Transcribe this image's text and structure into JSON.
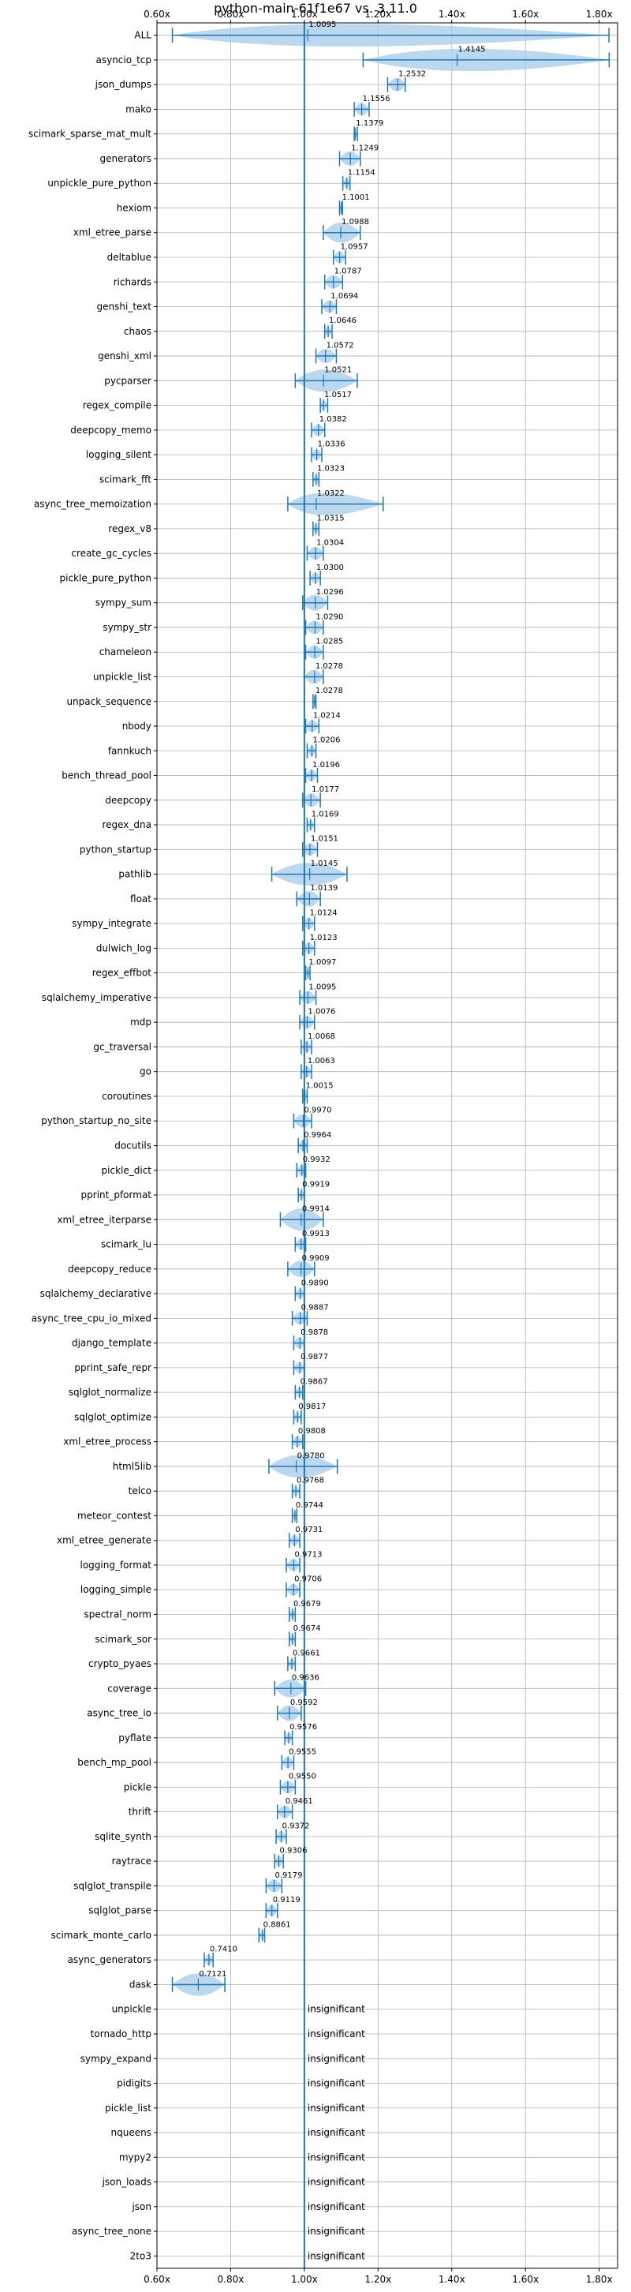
{
  "chart_data": {
    "type": "violin",
    "title": "python-main-61f1e67 vs. 3.11.0",
    "xlim": [
      0.6,
      1.85
    ],
    "x_ticks": [
      "0.60x",
      "0.80x",
      "1.00x",
      "1.20x",
      "1.40x",
      "1.60x",
      "1.80x"
    ],
    "x_tick_values": [
      0.6,
      0.8,
      1.0,
      1.2,
      1.4,
      1.6,
      1.8
    ],
    "reference_line": 1.0,
    "grid": true,
    "colors": {
      "violin": "#a6cbe8",
      "marker": "#1f77b4",
      "grid": "#b0b0b0",
      "refline": "#1f77b4"
    },
    "insignificant_label": "insignificant",
    "benchmarks": [
      {
        "name": "ALL",
        "value": 1.0095,
        "min": 0.6418,
        "max": 1.8266,
        "label": "1.0095"
      },
      {
        "name": "asyncio_tcp",
        "value": 1.4145,
        "min": 1.1594,
        "max": 1.8271,
        "label": "1.4145"
      },
      {
        "name": "json_dumps",
        "value": 1.2532,
        "min": 1.2259,
        "max": 1.2738,
        "label": "1.2532"
      },
      {
        "name": "mako",
        "value": 1.1556,
        "min": 1.1353,
        "max": 1.1757,
        "label": "1.1556"
      },
      {
        "name": "scimark_sparse_mat_mult",
        "value": 1.1379,
        "min": 1.1353,
        "max": 1.1438,
        "label": "1.1379"
      },
      {
        "name": "generators",
        "value": 1.1249,
        "min": 1.0955,
        "max": 1.1517,
        "label": "1.1249"
      },
      {
        "name": "unpickle_pure_python",
        "value": 1.1154,
        "min": 1.1043,
        "max": 1.1237,
        "label": "1.1154"
      },
      {
        "name": "hexiom",
        "value": 1.1001,
        "min": 1.0955,
        "max": 1.1036,
        "label": "1.1001"
      },
      {
        "name": "xml_etree_parse",
        "value": 1.0988,
        "min": 1.0513,
        "max": 1.1517,
        "label": "1.0988"
      },
      {
        "name": "deltablue",
        "value": 1.0957,
        "min": 1.0788,
        "max": 1.1117,
        "label": "1.0957"
      },
      {
        "name": "richards",
        "value": 1.0787,
        "min": 1.0553,
        "max": 1.1036,
        "label": "1.0787"
      },
      {
        "name": "genshi_text",
        "value": 1.0694,
        "min": 1.0474,
        "max": 1.0868,
        "label": "1.0694"
      },
      {
        "name": "chaos",
        "value": 1.0646,
        "min": 1.0553,
        "max": 1.0752,
        "label": "1.0646"
      },
      {
        "name": "genshi_xml",
        "value": 1.0572,
        "min": 1.0314,
        "max": 1.0868,
        "label": "1.0572"
      },
      {
        "name": "pycparser",
        "value": 1.0521,
        "min": 0.9753,
        "max": 1.1437,
        "label": "1.0521"
      },
      {
        "name": "regex_compile",
        "value": 1.0517,
        "min": 1.0434,
        "max": 1.0633,
        "label": "1.0517"
      },
      {
        "name": "deepcopy_memo",
        "value": 1.0382,
        "min": 1.0195,
        "max": 1.0553,
        "label": "1.0382"
      },
      {
        "name": "logging_silent",
        "value": 1.0336,
        "min": 1.0195,
        "max": 1.0474,
        "label": "1.0336"
      },
      {
        "name": "scimark_fft",
        "value": 1.0323,
        "min": 1.0235,
        "max": 1.0394,
        "label": "1.0323"
      },
      {
        "name": "async_tree_memoization",
        "value": 1.0322,
        "min": 0.9551,
        "max": 1.2138,
        "label": "1.0322"
      },
      {
        "name": "regex_v8",
        "value": 1.0315,
        "min": 1.0235,
        "max": 1.0394,
        "label": "1.0315"
      },
      {
        "name": "create_gc_cycles",
        "value": 1.0304,
        "min": 1.0076,
        "max": 1.0513,
        "label": "1.0304"
      },
      {
        "name": "pickle_pure_python",
        "value": 1.03,
        "min": 1.0155,
        "max": 1.0434,
        "label": "1.0300"
      },
      {
        "name": "sympy_sum",
        "value": 1.0296,
        "min": 0.9955,
        "max": 1.0633,
        "label": "1.0296"
      },
      {
        "name": "sympy_str",
        "value": 1.029,
        "min": 1.0036,
        "max": 1.0513,
        "label": "1.0290"
      },
      {
        "name": "chameleon",
        "value": 1.0285,
        "min": 1.0036,
        "max": 1.0513,
        "label": "1.0285"
      },
      {
        "name": "unpickle_list",
        "value": 1.0278,
        "min": 0.9995,
        "max": 1.0513,
        "label": "1.0278"
      },
      {
        "name": "unpack_sequence",
        "value": 1.0278,
        "min": 1.0235,
        "max": 1.0314,
        "label": "1.0278"
      },
      {
        "name": "nbody",
        "value": 1.0214,
        "min": 1.0036,
        "max": 1.0394,
        "label": "1.0214"
      },
      {
        "name": "fannkuch",
        "value": 1.0206,
        "min": 1.0076,
        "max": 1.0314,
        "label": "1.0206"
      },
      {
        "name": "bench_thread_pool",
        "value": 1.0196,
        "min": 1.0036,
        "max": 1.0355,
        "label": "1.0196"
      },
      {
        "name": "deepcopy",
        "value": 1.0177,
        "min": 0.9955,
        "max": 1.0434,
        "label": "1.0177"
      },
      {
        "name": "regex_dna",
        "value": 1.0169,
        "min": 1.0076,
        "max": 1.0275,
        "label": "1.0169"
      },
      {
        "name": "python_startup",
        "value": 1.0151,
        "min": 0.9955,
        "max": 1.0355,
        "label": "1.0151"
      },
      {
        "name": "pathlib",
        "value": 1.0145,
        "min": 0.9115,
        "max": 1.1157,
        "label": "1.0145"
      },
      {
        "name": "float",
        "value": 1.0139,
        "min": 0.9795,
        "max": 1.0434,
        "label": "1.0139"
      },
      {
        "name": "sympy_integrate",
        "value": 1.0124,
        "min": 0.9955,
        "max": 1.0275,
        "label": "1.0124"
      },
      {
        "name": "dulwich_log",
        "value": 1.0123,
        "min": 0.9955,
        "max": 1.0275,
        "label": "1.0123"
      },
      {
        "name": "regex_effbot",
        "value": 1.0097,
        "min": 1.0036,
        "max": 1.0155,
        "label": "1.0097"
      },
      {
        "name": "sqlalchemy_imperative",
        "value": 1.0095,
        "min": 0.9875,
        "max": 1.0314,
        "label": "1.0095"
      },
      {
        "name": "mdp",
        "value": 1.0076,
        "min": 0.9875,
        "max": 1.0275,
        "label": "1.0076"
      },
      {
        "name": "gc_traversal",
        "value": 1.0068,
        "min": 0.9915,
        "max": 1.0195,
        "label": "1.0068"
      },
      {
        "name": "go",
        "value": 1.0063,
        "min": 0.9915,
        "max": 1.0195,
        "label": "1.0063"
      },
      {
        "name": "coroutines",
        "value": 1.0015,
        "min": 0.9955,
        "max": 1.0076,
        "label": "1.0015"
      },
      {
        "name": "python_startup_no_site",
        "value": 0.997,
        "min": 0.9713,
        "max": 1.0195,
        "label": "0.9970"
      },
      {
        "name": "docutils",
        "value": 0.9964,
        "min": 0.9835,
        "max": 1.0076,
        "label": "0.9964"
      },
      {
        "name": "pickle_dict",
        "value": 0.9932,
        "min": 0.9795,
        "max": 1.0036,
        "label": "0.9932"
      },
      {
        "name": "pprint_pformat",
        "value": 0.9919,
        "min": 0.9835,
        "max": 0.9995,
        "label": "0.9919"
      },
      {
        "name": "xml_etree_iterparse",
        "value": 0.9914,
        "min": 0.9349,
        "max": 1.0513,
        "label": "0.9914"
      },
      {
        "name": "scimark_lu",
        "value": 0.9913,
        "min": 0.9753,
        "max": 1.0036,
        "label": "0.9913"
      },
      {
        "name": "deepcopy_reduce",
        "value": 0.9909,
        "min": 0.9551,
        "max": 1.0275,
        "label": "0.9909"
      },
      {
        "name": "sqlalchemy_declarative",
        "value": 0.989,
        "min": 0.9753,
        "max": 0.9995,
        "label": "0.9890"
      },
      {
        "name": "async_tree_cpu_io_mixed",
        "value": 0.9887,
        "min": 0.9673,
        "max": 1.0076,
        "label": "0.9887"
      },
      {
        "name": "django_template",
        "value": 0.9878,
        "min": 0.9713,
        "max": 0.9995,
        "label": "0.9878"
      },
      {
        "name": "pprint_safe_repr",
        "value": 0.9877,
        "min": 0.9713,
        "max": 0.9995,
        "label": "0.9877"
      },
      {
        "name": "sqlglot_normalize",
        "value": 0.9867,
        "min": 0.9753,
        "max": 0.9955,
        "label": "0.9867"
      },
      {
        "name": "sqlglot_optimize",
        "value": 0.9817,
        "min": 0.9713,
        "max": 0.9915,
        "label": "0.9817"
      },
      {
        "name": "xml_etree_process",
        "value": 0.9808,
        "min": 0.9673,
        "max": 0.9955,
        "label": "0.9808"
      },
      {
        "name": "html5lib",
        "value": 0.978,
        "min": 0.9038,
        "max": 1.0894,
        "label": "0.9780"
      },
      {
        "name": "telco",
        "value": 0.9768,
        "min": 0.9673,
        "max": 0.9875,
        "label": "0.9768"
      },
      {
        "name": "meteor_contest",
        "value": 0.9744,
        "min": 0.9673,
        "max": 0.9795,
        "label": "0.9744"
      },
      {
        "name": "xml_etree_generate",
        "value": 0.9731,
        "min": 0.9591,
        "max": 0.9875,
        "label": "0.9731"
      },
      {
        "name": "logging_format",
        "value": 0.9713,
        "min": 0.9511,
        "max": 0.9875,
        "label": "0.9713"
      },
      {
        "name": "logging_simple",
        "value": 0.9706,
        "min": 0.9511,
        "max": 0.9875,
        "label": "0.9706"
      },
      {
        "name": "spectral_norm",
        "value": 0.9679,
        "min": 0.9591,
        "max": 0.9753,
        "label": "0.9679"
      },
      {
        "name": "scimark_sor",
        "value": 0.9674,
        "min": 0.9591,
        "max": 0.9753,
        "label": "0.9674"
      },
      {
        "name": "crypto_pyaes",
        "value": 0.9661,
        "min": 0.9551,
        "max": 0.9753,
        "label": "0.9661"
      },
      {
        "name": "coverage",
        "value": 0.9636,
        "min": 0.9194,
        "max": 1.0036,
        "label": "0.9636"
      },
      {
        "name": "async_tree_io",
        "value": 0.9592,
        "min": 0.9271,
        "max": 0.9915,
        "label": "0.9592"
      },
      {
        "name": "pyflate",
        "value": 0.9576,
        "min": 0.9469,
        "max": 0.9673,
        "label": "0.9576"
      },
      {
        "name": "bench_mp_pool",
        "value": 0.9555,
        "min": 0.9389,
        "max": 0.9713,
        "label": "0.9555"
      },
      {
        "name": "pickle",
        "value": 0.955,
        "min": 0.9349,
        "max": 0.9753,
        "label": "0.9550"
      },
      {
        "name": "thrift",
        "value": 0.9461,
        "min": 0.9271,
        "max": 0.9673,
        "label": "0.9461"
      },
      {
        "name": "sqlite_synth",
        "value": 0.9372,
        "min": 0.9234,
        "max": 0.9511,
        "label": "0.9372"
      },
      {
        "name": "raytrace",
        "value": 0.9306,
        "min": 0.9194,
        "max": 0.9429,
        "label": "0.9306"
      },
      {
        "name": "sqlglot_transpile",
        "value": 0.9179,
        "min": 0.8961,
        "max": 0.9389,
        "label": "0.9179"
      },
      {
        "name": "sqlglot_parse",
        "value": 0.9119,
        "min": 0.8961,
        "max": 0.9271,
        "label": "0.9119"
      },
      {
        "name": "scimark_monte_carlo",
        "value": 0.8861,
        "min": 0.8767,
        "max": 0.8922,
        "label": "0.8861"
      },
      {
        "name": "async_generators",
        "value": 0.741,
        "min": 0.7282,
        "max": 0.7523,
        "label": "0.7410"
      },
      {
        "name": "dask",
        "value": 0.7121,
        "min": 0.6418,
        "max": 0.7842,
        "label": "0.7121"
      },
      {
        "name": "unpickle",
        "value": null,
        "insignificant": true
      },
      {
        "name": "tornado_http",
        "value": null,
        "insignificant": true
      },
      {
        "name": "sympy_expand",
        "value": null,
        "insignificant": true
      },
      {
        "name": "pidigits",
        "value": null,
        "insignificant": true
      },
      {
        "name": "pickle_list",
        "value": null,
        "insignificant": true
      },
      {
        "name": "nqueens",
        "value": null,
        "insignificant": true
      },
      {
        "name": "mypy2",
        "value": null,
        "insignificant": true
      },
      {
        "name": "json_loads",
        "value": null,
        "insignificant": true
      },
      {
        "name": "json",
        "value": null,
        "insignificant": true
      },
      {
        "name": "async_tree_none",
        "value": null,
        "insignificant": true
      },
      {
        "name": "2to3",
        "value": null,
        "insignificant": true
      }
    ]
  }
}
